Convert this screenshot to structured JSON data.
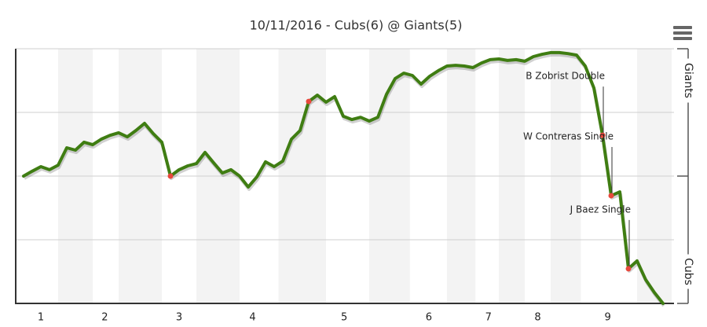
{
  "chart_data": {
    "type": "line",
    "title": "10/11/2016 - Cubs(6) @ Giants(5)",
    "upper_label": "Giants",
    "lower_label": "Cubs",
    "x": [
      0,
      1,
      2,
      3,
      4,
      5,
      6,
      7,
      8,
      9,
      10,
      11,
      12,
      13,
      14,
      15,
      16,
      17,
      18,
      19,
      20,
      21,
      22,
      23,
      24,
      25,
      26,
      27,
      28,
      29,
      30,
      31,
      32,
      33,
      34,
      35,
      36,
      37,
      38,
      39,
      40,
      41,
      42,
      43,
      44,
      45,
      46,
      47,
      48,
      49,
      50,
      51,
      52,
      53,
      54,
      55,
      56,
      57,
      58,
      59,
      60,
      61,
      62,
      63,
      64,
      65,
      66,
      67,
      68,
      69,
      70,
      71,
      72,
      73,
      74
    ],
    "series": [
      {
        "color": "#3f7d12",
        "values": [
          50,
          51.9,
          53.7,
          52.5,
          54.3,
          61.1,
          60.2,
          63.3,
          62.3,
          64.5,
          66,
          67,
          65.4,
          67.9,
          70.7,
          66.7,
          63.3,
          50,
          52.5,
          54,
          54.9,
          59.3,
          55.2,
          51.2,
          52.5,
          50,
          45.7,
          49.7,
          55.6,
          53.7,
          55.9,
          64.5,
          67.9,
          79.3,
          81.8,
          79,
          81.2,
          73.5,
          72.2,
          73.1,
          71.6,
          73.1,
          82.1,
          88.3,
          90.4,
          89.5,
          86.1,
          89.2,
          91.4,
          93.2,
          93.5,
          93.2,
          92.6,
          94.4,
          95.7,
          96,
          95.4,
          95.7,
          95.1,
          96.9,
          97.8,
          98.5,
          98.5,
          98.1,
          97.5,
          93.2,
          84.6,
          66,
          42.3,
          43.8,
          13.6,
          16.7,
          9.3,
          4.3,
          0
        ]
      }
    ],
    "highlights": [
      {
        "x": 17
      },
      {
        "x": 33
      },
      {
        "x": 67,
        "label": "B Zobrist Double"
      },
      {
        "x": 68,
        "label": "W Contreras Single"
      },
      {
        "x": 70,
        "label": "J Baez Single"
      }
    ],
    "highlight_color": "#e8483c",
    "bands": [
      [
        4,
        8
      ],
      [
        11,
        16
      ],
      [
        20,
        25
      ],
      [
        29.5,
        35
      ],
      [
        40,
        44.7
      ],
      [
        49,
        52.3
      ],
      [
        55,
        58
      ],
      [
        61,
        64.5
      ],
      [
        71,
        75
      ]
    ],
    "xlim": [
      -1,
      75
    ],
    "xticks": [
      {
        "value": 2,
        "label": "1"
      },
      {
        "value": 9.4,
        "label": "2"
      },
      {
        "value": 18,
        "label": "3"
      },
      {
        "value": 26.5,
        "label": "4"
      },
      {
        "value": 37.1,
        "label": "5"
      },
      {
        "value": 46.9,
        "label": "6"
      },
      {
        "value": 53.8,
        "label": "7"
      },
      {
        "value": 59.5,
        "label": "8"
      },
      {
        "value": 67.6,
        "label": "9"
      }
    ],
    "ylim": [
      0,
      100
    ],
    "yticks": [
      0,
      25,
      50,
      75,
      100
    ],
    "grid": true
  }
}
